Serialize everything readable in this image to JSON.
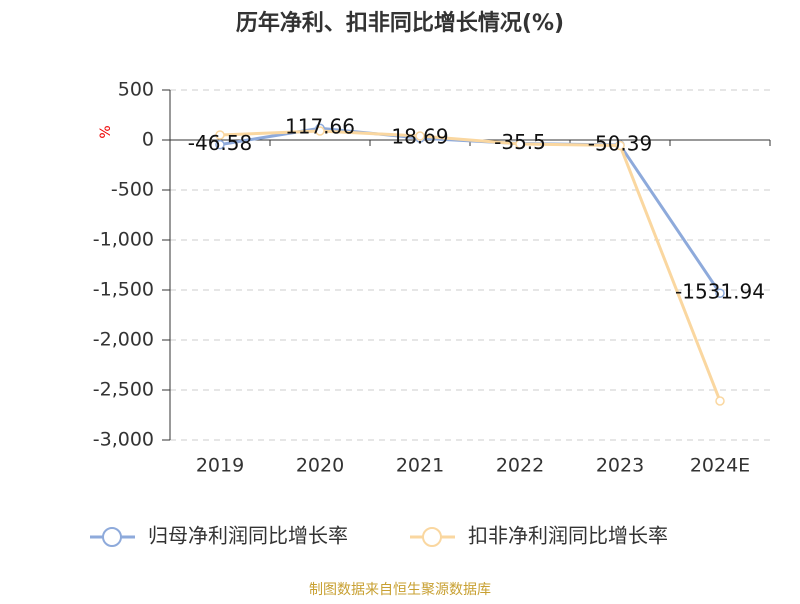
{
  "chart_data": {
    "type": "line",
    "title": "历年净利、扣非同比增长情况(%)",
    "y_label": "%",
    "source": "制图数据来自恒生聚源数据库",
    "categories": [
      "2019",
      "2020",
      "2021",
      "2022",
      "2023",
      "2024E"
    ],
    "series": [
      {
        "name": "归母净利润同比增长率",
        "color": "#8eaadb",
        "values": [
          -46.58,
          117.66,
          18.69,
          -35.5,
          -50.39,
          -1531.94
        ],
        "show_labels": true
      },
      {
        "name": "扣非净利润同比增长率",
        "color": "#fad7a0",
        "values": [
          50,
          90,
          40,
          -40,
          -55,
          -2610
        ],
        "show_labels": false
      }
    ],
    "ylim": [
      -3000,
      500
    ],
    "yticks": [
      500,
      0,
      -500,
      {
        "value": -1000,
        "label": "-1,000"
      },
      {
        "value": -1500,
        "label": "-1,500"
      },
      {
        "value": -2000,
        "label": "-2,000"
      },
      {
        "value": -2500,
        "label": "-2,500"
      },
      {
        "value": -3000,
        "label": "-3,000"
      }
    ],
    "grid": true
  }
}
